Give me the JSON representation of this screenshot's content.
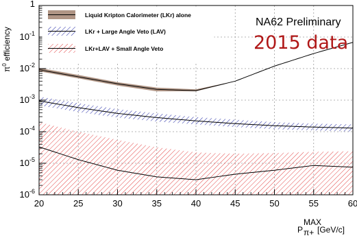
{
  "chart_data": {
    "type": "area",
    "title": "",
    "xlabel": "P",
    "xlabel_sup": "MAX",
    "xlabel_sub": "π+",
    "xlabel_unit": "[GeV/c]",
    "ylabel": "π",
    "ylabel_sup": "0",
    "ylabel_rest": " efficiency",
    "yscale": "log",
    "xlim": [
      20,
      60
    ],
    "ylim": [
      1e-06,
      1
    ],
    "grid": true,
    "legend_position": "top-left",
    "x_ticks": [
      "20",
      "25",
      "30",
      "35",
      "40",
      "45",
      "50",
      "55",
      "60"
    ],
    "y_ticks": [
      {
        "base": "10",
        "exp": "-6"
      },
      {
        "base": "10",
        "exp": "-5"
      },
      {
        "base": "10",
        "exp": "-4"
      },
      {
        "base": "10",
        "exp": "-3"
      },
      {
        "base": "10",
        "exp": "-2"
      },
      {
        "base": "10",
        "exp": "-1"
      },
      {
        "base": "",
        "exp": "1"
      }
    ],
    "annotations": {
      "preliminary": "NA62 Preliminary",
      "data_label": "2015 data"
    },
    "series": [
      {
        "name": "Liquid Kripton Calorimeter (LKr) alone",
        "color": "#000000",
        "band_color": "#b09585",
        "band_style": "solid",
        "x": [
          20,
          25,
          30,
          35,
          40,
          45,
          50,
          55,
          60
        ],
        "y": [
          0.0092,
          0.0055,
          0.0033,
          0.0022,
          0.002,
          0.004,
          0.012,
          0.03,
          0.068
        ],
        "y_low": [
          0.0082,
          0.0049,
          0.0029,
          0.0019,
          0.0019,
          0.004,
          0.012,
          0.03,
          0.068
        ],
        "y_high": [
          0.0105,
          0.0063,
          0.0037,
          0.0025,
          0.0022,
          0.004,
          0.012,
          0.03,
          0.068
        ]
      },
      {
        "name": "LKr + Large Angle Veto (LAV)",
        "color": "#000000",
        "band_color": "#2a32a8",
        "band_style": "hatch",
        "x": [
          20,
          25,
          30,
          35,
          40,
          45,
          50,
          55,
          60
        ],
        "y": [
          0.00095,
          0.00058,
          0.00038,
          0.00028,
          0.00022,
          0.00018,
          0.000155,
          0.00014,
          0.00013
        ],
        "y_low": [
          0.00068,
          0.00042,
          0.00028,
          0.00021,
          0.00017,
          0.00014,
          0.00012,
          0.00011,
          0.0001
        ],
        "y_high": [
          0.0013,
          0.0008,
          0.00052,
          0.00038,
          0.00029,
          0.00024,
          0.0002,
          0.00018,
          0.00017
        ]
      },
      {
        "name": "LKr+LAV + Small Angle Veto",
        "color": "#000000",
        "band_color": "#e03030",
        "band_style": "hatch",
        "x": [
          20,
          25,
          30,
          35,
          40,
          45,
          50,
          55,
          60
        ],
        "y": [
          3.3e-05,
          1.3e-05,
          6e-06,
          3.7e-06,
          3e-06,
          4.5e-06,
          6e-06,
          8.5e-06,
          7.5e-06
        ],
        "y_low": [
          1e-06,
          1e-06,
          1e-06,
          1e-06,
          1e-06,
          1e-06,
          1e-06,
          1e-06,
          1e-06
        ],
        "y_high": [
          0.0002,
          0.0001,
          5.5e-05,
          3.2e-05,
          2.2e-05,
          2e-05,
          2.1e-05,
          2.3e-05,
          2.4e-05
        ]
      }
    ]
  }
}
